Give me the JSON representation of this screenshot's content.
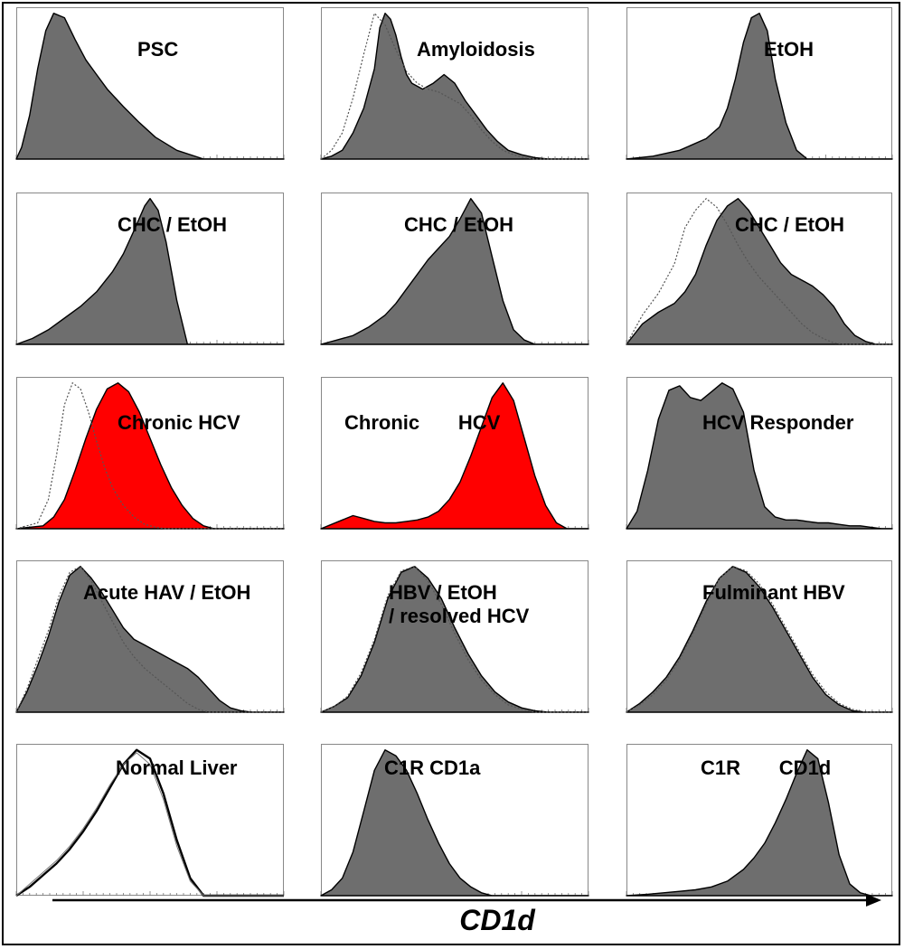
{
  "chart_data": {
    "type": "area",
    "x_axis_label": "CD1d",
    "colors": {
      "filled": "#6e6e6e",
      "positive": "#ff0000",
      "outline": "#000000",
      "control": "#777777"
    },
    "panels": [
      {
        "label": "PSC",
        "fill": "gray",
        "hist": {
          "x": [
            0,
            2,
            5,
            8,
            11,
            14,
            18,
            22,
            26,
            30,
            34,
            40,
            46,
            52,
            60,
            70,
            100
          ],
          "y": [
            0,
            8,
            30,
            62,
            88,
            100,
            97,
            82,
            68,
            58,
            48,
            36,
            25,
            15,
            6,
            0,
            0
          ]
        }
      },
      {
        "label": "Amyloidosis",
        "fill": "gray",
        "hist": {
          "x": [
            0,
            4,
            8,
            12,
            16,
            20,
            22,
            24,
            26,
            28,
            30,
            32,
            34,
            38,
            42,
            46,
            50,
            54,
            58,
            62,
            66,
            70,
            75,
            80,
            85,
            100
          ],
          "y": [
            0,
            2,
            6,
            18,
            35,
            62,
            90,
            100,
            96,
            85,
            70,
            58,
            52,
            48,
            52,
            58,
            52,
            40,
            30,
            20,
            12,
            6,
            3,
            1,
            0,
            0
          ]
        },
        "control": {
          "x": [
            0,
            4,
            8,
            12,
            16,
            20,
            24,
            28,
            32,
            36,
            40,
            44,
            48,
            52,
            56,
            60,
            64,
            68,
            72,
            76,
            80,
            100
          ],
          "y": [
            0,
            6,
            18,
            42,
            72,
            100,
            92,
            75,
            60,
            52,
            48,
            46,
            42,
            38,
            30,
            20,
            12,
            6,
            3,
            1,
            0,
            0
          ]
        }
      },
      {
        "label": "EtOH",
        "fill": "gray",
        "hist": {
          "x": [
            0,
            10,
            20,
            30,
            35,
            38,
            41,
            44,
            47,
            50,
            53,
            56,
            60,
            64,
            68,
            100
          ],
          "y": [
            0,
            2,
            6,
            14,
            22,
            35,
            55,
            80,
            97,
            100,
            88,
            55,
            25,
            6,
            0,
            0
          ]
        }
      },
      {
        "label": "CHC / EtOH",
        "fill": "gray",
        "hist": {
          "x": [
            0,
            6,
            12,
            18,
            24,
            30,
            36,
            40,
            44,
            48,
            50,
            53,
            56,
            60,
            64,
            100
          ],
          "y": [
            0,
            4,
            10,
            18,
            26,
            36,
            50,
            62,
            78,
            95,
            100,
            92,
            70,
            30,
            0,
            0
          ]
        }
      },
      {
        "label": "CHC / EtOH",
        "fill": "gray",
        "hist": {
          "x": [
            0,
            6,
            12,
            18,
            24,
            28,
            32,
            36,
            40,
            44,
            48,
            52,
            56,
            60,
            64,
            68,
            72,
            76,
            80,
            100
          ],
          "y": [
            0,
            3,
            6,
            12,
            20,
            28,
            38,
            48,
            58,
            66,
            74,
            86,
            100,
            90,
            60,
            30,
            10,
            3,
            0,
            0
          ]
        }
      },
      {
        "label": "CHC / EtOH",
        "fill": "gray",
        "hist": {
          "x": [
            0,
            6,
            12,
            18,
            22,
            26,
            30,
            34,
            38,
            42,
            46,
            50,
            54,
            58,
            62,
            66,
            70,
            74,
            78,
            82,
            86,
            90,
            94,
            100
          ],
          "y": [
            0,
            14,
            22,
            28,
            36,
            48,
            68,
            85,
            95,
            100,
            92,
            80,
            68,
            56,
            48,
            44,
            40,
            34,
            26,
            14,
            6,
            2,
            0,
            0
          ]
        },
        "control": {
          "x": [
            0,
            6,
            12,
            18,
            22,
            26,
            30,
            34,
            38,
            42,
            46,
            50,
            54,
            58,
            62,
            66,
            70,
            74,
            78,
            82,
            100
          ],
          "y": [
            0,
            20,
            35,
            55,
            80,
            92,
            100,
            94,
            82,
            68,
            56,
            46,
            38,
            30,
            22,
            14,
            8,
            4,
            1,
            0,
            0
          ]
        }
      },
      {
        "label": "Chronic HCV",
        "fill": "red",
        "hist": {
          "x": [
            0,
            10,
            14,
            18,
            22,
            26,
            30,
            34,
            38,
            42,
            46,
            50,
            54,
            58,
            62,
            66,
            70,
            74,
            100
          ],
          "y": [
            0,
            2,
            8,
            20,
            40,
            62,
            82,
            96,
            100,
            94,
            80,
            62,
            44,
            28,
            16,
            7,
            2,
            0,
            0
          ]
        },
        "control": {
          "x": [
            0,
            8,
            12,
            15,
            18,
            21,
            24,
            27,
            30,
            33,
            36,
            40,
            44,
            48,
            52,
            56,
            100
          ],
          "y": [
            0,
            4,
            20,
            50,
            85,
            100,
            96,
            80,
            60,
            42,
            28,
            16,
            8,
            3,
            1,
            0,
            0
          ]
        }
      },
      {
        "label": "Chronic       HCV",
        "fill": "red",
        "hist": {
          "x": [
            0,
            4,
            8,
            12,
            16,
            20,
            24,
            28,
            32,
            36,
            40,
            44,
            48,
            52,
            56,
            60,
            64,
            68,
            72,
            76,
            80,
            84,
            88,
            92,
            100
          ],
          "y": [
            0,
            3,
            6,
            9,
            7,
            5,
            4,
            4,
            5,
            6,
            8,
            12,
            20,
            32,
            50,
            70,
            90,
            100,
            88,
            62,
            36,
            16,
            4,
            0,
            0
          ]
        }
      },
      {
        "label": "HCV Responder",
        "fill": "gray",
        "hist": {
          "x": [
            0,
            4,
            8,
            12,
            16,
            20,
            24,
            28,
            32,
            36,
            40,
            44,
            48,
            52,
            56,
            60,
            64,
            68,
            72,
            76,
            80,
            84,
            88,
            92,
            96,
            100
          ],
          "y": [
            0,
            12,
            40,
            75,
            95,
            98,
            90,
            88,
            94,
            100,
            96,
            80,
            40,
            15,
            8,
            6,
            6,
            5,
            4,
            4,
            3,
            2,
            2,
            1,
            0,
            0
          ]
        }
      },
      {
        "label": "Acute HAV / EtOH",
        "fill": "gray",
        "hist": {
          "x": [
            0,
            4,
            8,
            12,
            16,
            20,
            24,
            28,
            32,
            36,
            40,
            44,
            48,
            52,
            56,
            60,
            64,
            68,
            72,
            76,
            80,
            84,
            88,
            100
          ],
          "y": [
            0,
            14,
            32,
            52,
            76,
            94,
            100,
            92,
            82,
            70,
            58,
            50,
            46,
            42,
            38,
            34,
            30,
            24,
            16,
            8,
            3,
            1,
            0,
            0
          ]
        },
        "control": {
          "x": [
            0,
            4,
            8,
            12,
            16,
            20,
            24,
            28,
            32,
            36,
            40,
            44,
            48,
            52,
            56,
            60,
            64,
            68,
            72,
            76,
            100
          ],
          "y": [
            0,
            16,
            36,
            56,
            80,
            96,
            100,
            90,
            76,
            62,
            48,
            38,
            30,
            24,
            18,
            12,
            6,
            2,
            0,
            0,
            0
          ]
        }
      },
      {
        "label": "HBV / EtOH\n/ resolved HCV",
        "fill": "gray",
        "hist": {
          "x": [
            0,
            5,
            10,
            15,
            20,
            25,
            30,
            35,
            40,
            45,
            50,
            55,
            60,
            65,
            70,
            75,
            80,
            85,
            100
          ],
          "y": [
            0,
            4,
            10,
            25,
            48,
            78,
            96,
            100,
            92,
            78,
            58,
            40,
            25,
            14,
            7,
            3,
            1,
            0,
            0
          ]
        },
        "control": {
          "x": [
            0,
            5,
            10,
            15,
            20,
            25,
            30,
            35,
            40,
            45,
            50,
            55,
            60,
            65,
            70,
            75,
            80,
            100
          ],
          "y": [
            0,
            4,
            11,
            27,
            50,
            80,
            97,
            100,
            90,
            74,
            54,
            36,
            22,
            12,
            5,
            2,
            0,
            0
          ]
        }
      },
      {
        "label": "Fulminant HBV",
        "fill": "gray",
        "hist": {
          "x": [
            0,
            5,
            10,
            15,
            20,
            25,
            30,
            35,
            40,
            45,
            50,
            55,
            60,
            65,
            70,
            75,
            80,
            85,
            90,
            100
          ],
          "y": [
            0,
            6,
            14,
            24,
            38,
            56,
            76,
            92,
            100,
            96,
            86,
            72,
            56,
            40,
            24,
            12,
            5,
            1,
            0,
            0
          ]
        },
        "control": {
          "x": [
            0,
            5,
            10,
            15,
            20,
            25,
            30,
            35,
            40,
            45,
            50,
            55,
            60,
            65,
            70,
            75,
            80,
            85,
            90,
            100
          ],
          "y": [
            0,
            5,
            12,
            22,
            36,
            54,
            74,
            92,
            100,
            97,
            88,
            74,
            58,
            42,
            26,
            14,
            6,
            2,
            0,
            0
          ]
        }
      },
      {
        "label": "Normal Liver",
        "fill": "none",
        "hist": {
          "x": [
            0,
            5,
            10,
            15,
            20,
            25,
            30,
            35,
            40,
            45,
            50,
            55,
            60,
            65,
            70,
            100
          ],
          "y": [
            0,
            6,
            14,
            22,
            32,
            44,
            58,
            74,
            90,
            100,
            94,
            70,
            38,
            12,
            0,
            0
          ]
        },
        "control": {
          "x": [
            0,
            5,
            10,
            15,
            20,
            25,
            30,
            35,
            40,
            45,
            50,
            55,
            60,
            65,
            70,
            100
          ],
          "y": [
            0,
            8,
            16,
            24,
            34,
            46,
            60,
            76,
            90,
            98,
            90,
            66,
            34,
            10,
            0,
            0
          ]
        }
      },
      {
        "label": "C1R CD1a",
        "fill": "gray",
        "hist": {
          "x": [
            0,
            4,
            8,
            12,
            16,
            20,
            24,
            28,
            32,
            36,
            40,
            44,
            48,
            52,
            56,
            60,
            64,
            68,
            100
          ],
          "y": [
            0,
            4,
            12,
            30,
            58,
            86,
            100,
            96,
            86,
            70,
            52,
            36,
            22,
            12,
            6,
            2,
            0,
            0,
            0
          ]
        }
      },
      {
        "label": "C1R       CD1d",
        "fill": "gray",
        "hist": {
          "x": [
            0,
            8,
            14,
            20,
            26,
            32,
            38,
            44,
            48,
            52,
            56,
            60,
            64,
            68,
            72,
            76,
            80,
            84,
            88,
            92,
            100
          ],
          "y": [
            0,
            1,
            2,
            3,
            4,
            6,
            10,
            18,
            26,
            36,
            50,
            66,
            84,
            100,
            94,
            64,
            28,
            8,
            2,
            0,
            0
          ]
        }
      }
    ]
  }
}
